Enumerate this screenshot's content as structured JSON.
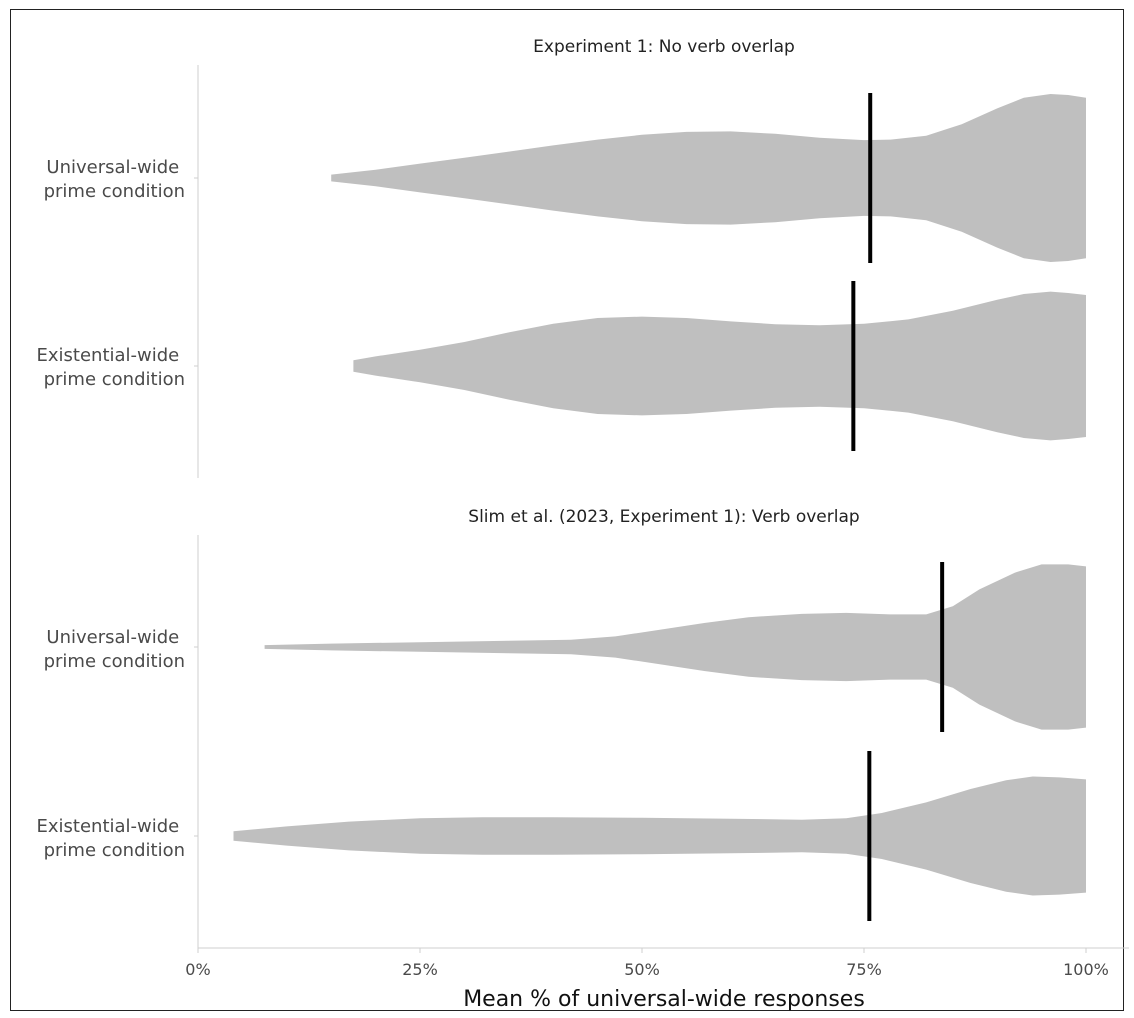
{
  "chart_data": {
    "type": "violin",
    "xlabel": "Mean % of universal-wide responses",
    "xlim": [
      0,
      100
    ],
    "xticks": [
      {
        "value": 0,
        "label": "0%"
      },
      {
        "value": 25,
        "label": "25%"
      },
      {
        "value": 50,
        "label": "50%"
      },
      {
        "value": 75,
        "label": "75%"
      },
      {
        "value": 100,
        "label": "100%"
      }
    ],
    "grid": false,
    "panels": [
      {
        "title": "Experiment 1: No verb overlap",
        "groups": [
          {
            "label_line1": "Universal-wide",
            "label_line2": "prime condition",
            "mean": 75.7,
            "density": [
              [
                15,
                0.07
              ],
              [
                20,
                0.17
              ],
              [
                25,
                0.3
              ],
              [
                30,
                0.42
              ],
              [
                35,
                0.55
              ],
              [
                40,
                0.68
              ],
              [
                45,
                0.8
              ],
              [
                50,
                0.9
              ],
              [
                55,
                0.96
              ],
              [
                60,
                0.97
              ],
              [
                65,
                0.92
              ],
              [
                70,
                0.84
              ],
              [
                75,
                0.79
              ],
              [
                78,
                0.8
              ],
              [
                82,
                0.88
              ],
              [
                86,
                1.12
              ],
              [
                90,
                1.45
              ],
              [
                93,
                1.67
              ],
              [
                96,
                1.75
              ],
              [
                98,
                1.73
              ],
              [
                100,
                1.67
              ]
            ]
          },
          {
            "label_line1": "Existential-wide",
            "label_line2": "prime condition",
            "mean": 73.8,
            "density": [
              [
                17.5,
                0.12
              ],
              [
                20,
                0.2
              ],
              [
                25,
                0.34
              ],
              [
                30,
                0.5
              ],
              [
                35,
                0.7
              ],
              [
                40,
                0.88
              ],
              [
                45,
                1.0
              ],
              [
                50,
                1.03
              ],
              [
                55,
                1.0
              ],
              [
                60,
                0.93
              ],
              [
                65,
                0.87
              ],
              [
                70,
                0.85
              ],
              [
                75,
                0.88
              ],
              [
                80,
                0.97
              ],
              [
                85,
                1.15
              ],
              [
                90,
                1.38
              ],
              [
                93,
                1.5
              ],
              [
                96,
                1.55
              ],
              [
                98,
                1.52
              ],
              [
                100,
                1.48
              ]
            ]
          }
        ]
      },
      {
        "title": "Slim et al. (2023, Experiment 1): Verb overlap",
        "groups": [
          {
            "label_line1": "Universal-wide",
            "label_line2": "prime condition",
            "mean": 83.8,
            "density": [
              [
                7.5,
                0.04
              ],
              [
                15,
                0.07
              ],
              [
                25,
                0.1
              ],
              [
                35,
                0.13
              ],
              [
                42,
                0.15
              ],
              [
                47,
                0.22
              ],
              [
                52,
                0.36
              ],
              [
                57,
                0.5
              ],
              [
                62,
                0.62
              ],
              [
                68,
                0.69
              ],
              [
                73,
                0.71
              ],
              [
                78,
                0.68
              ],
              [
                82,
                0.68
              ],
              [
                85,
                0.85
              ],
              [
                88,
                1.2
              ],
              [
                92,
                1.55
              ],
              [
                95,
                1.72
              ],
              [
                98,
                1.72
              ],
              [
                100,
                1.68
              ]
            ]
          },
          {
            "label_line1": "Existential-wide",
            "label_line2": "prime condition",
            "mean": 75.6,
            "density": [
              [
                4,
                0.1
              ],
              [
                10,
                0.2
              ],
              [
                17,
                0.3
              ],
              [
                25,
                0.37
              ],
              [
                32,
                0.39
              ],
              [
                40,
                0.39
              ],
              [
                50,
                0.38
              ],
              [
                60,
                0.36
              ],
              [
                68,
                0.34
              ],
              [
                73,
                0.37
              ],
              [
                77,
                0.48
              ],
              [
                82,
                0.7
              ],
              [
                87,
                0.98
              ],
              [
                91,
                1.16
              ],
              [
                94,
                1.24
              ],
              [
                97,
                1.22
              ],
              [
                100,
                1.18
              ]
            ]
          }
        ]
      }
    ]
  }
}
